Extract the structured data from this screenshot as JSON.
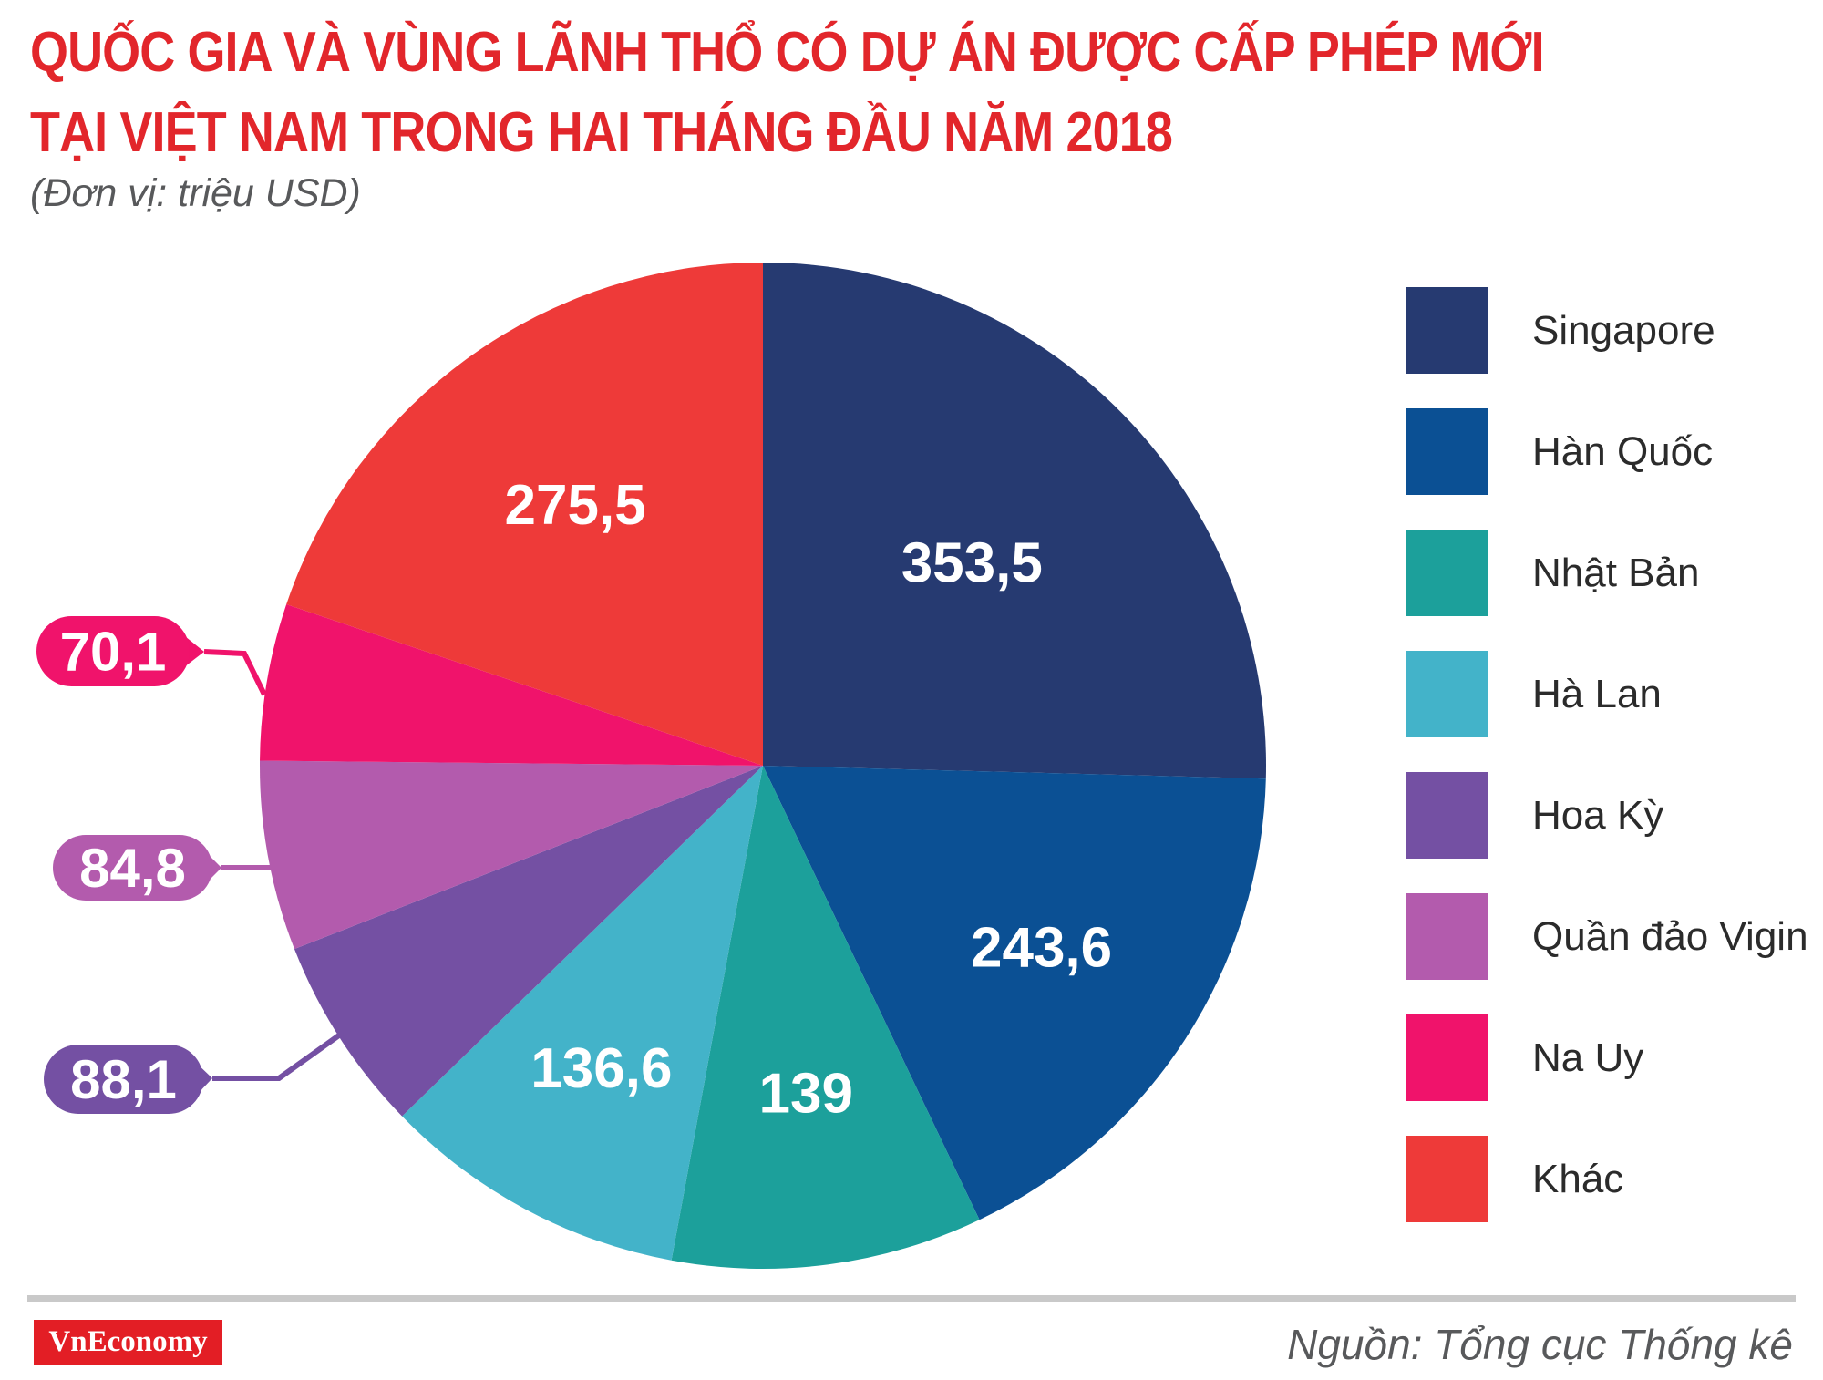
{
  "title": {
    "line1": "QUỐC GIA VÀ VÙNG LÃNH THỔ CÓ DỰ ÁN ĐƯỢC CẤP PHÉP MỚI",
    "line2": "TẠI VIỆT NAM TRONG HAI THÁNG ĐẦU NĂM 2018"
  },
  "subtitle": "(Đơn vị: triệu USD)",
  "accent_title_color": "#E2262B",
  "chart_data": {
    "type": "pie",
    "title": "Quốc gia và vùng lãnh thổ có dự án được cấp phép mới tại Việt Nam trong hai tháng đầu năm 2018",
    "unit_label": "(Đơn vị: triệu USD)",
    "start_angle_deg": 0,
    "direction": "clockwise",
    "legend_position": "right",
    "slices": [
      {
        "id": "singapore",
        "label": "Singapore",
        "value": 353.5,
        "display": "353,5",
        "color": "#263A71",
        "label_style": "inside",
        "label_r": 0.58
      },
      {
        "id": "han-quoc",
        "label": "Hàn Quốc",
        "value": 243.6,
        "display": "243,6",
        "color": "#0B5094",
        "label_style": "inside",
        "label_r": 0.66
      },
      {
        "id": "nhat-ban",
        "label": "Nhật Bản",
        "value": 139,
        "display": "139",
        "color": "#1CA09B",
        "label_style": "inside",
        "label_r": 0.655
      },
      {
        "id": "ha-lan",
        "label": "Hà Lan",
        "value": 136.6,
        "display": "136,6",
        "color": "#43B3C9",
        "label_style": "inside",
        "label_r": 0.68
      },
      {
        "id": "hoa-ky",
        "label": "Hoa Kỳ",
        "value": 88.1,
        "display": "88,1",
        "color": "#7450A3",
        "label_style": "callout"
      },
      {
        "id": "quan-dao-vigin",
        "label": "Quần đảo Vigin",
        "value": 84.8,
        "display": "84,8",
        "color": "#B35BAD",
        "label_style": "callout"
      },
      {
        "id": "na-uy",
        "label": "Na Uy",
        "value": 70.1,
        "display": "70,1",
        "color": "#F0136B",
        "label_style": "callout"
      },
      {
        "id": "khac",
        "label": "Khác",
        "value": 275.5,
        "display": "275,5",
        "color": "#EE3A39",
        "label_style": "inside",
        "label_r": 0.64
      }
    ]
  },
  "callouts": [
    {
      "slice_id": "na-uy",
      "display": "70,1",
      "color": "#F0136B"
    },
    {
      "slice_id": "quan-dao-vigin",
      "display": "84,8",
      "color": "#B35BAD"
    },
    {
      "slice_id": "hoa-ky",
      "display": "88,1",
      "color": "#7450A3"
    }
  ],
  "footer": {
    "logo_text": "VnEconomy",
    "logo_bg_color": "#E31E25",
    "source": "Nguồn: Tổng cục Thống kê"
  }
}
